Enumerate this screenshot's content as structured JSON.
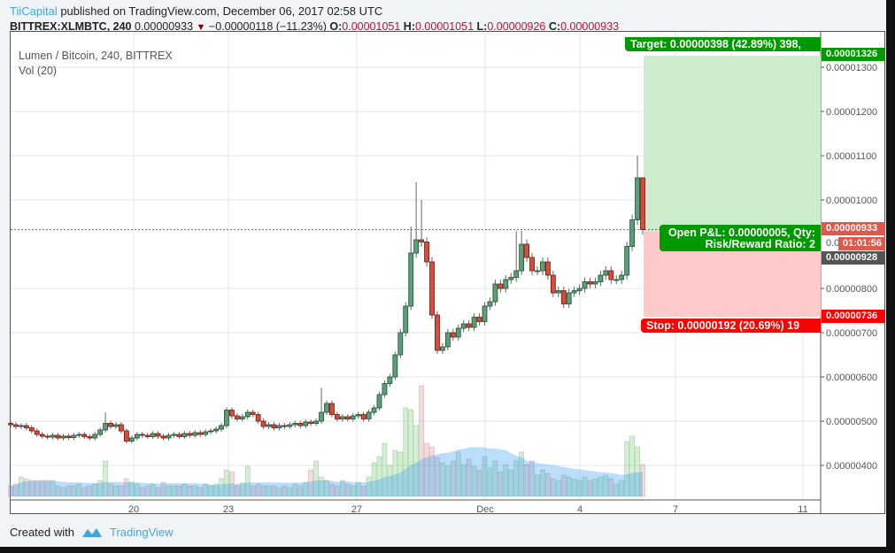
{
  "header": {
    "publisher": "TiiCapital",
    "published_text": "published on TradingView.com, December 06, 2017 02:58 UTC"
  },
  "symbol_bar": {
    "symbol": "BITTREX:XLMBTC, 240",
    "last": "0.00000933",
    "change": "−0.00000118 (−11.23%)",
    "o_label": "O:",
    "o": "0.00001051",
    "h_label": "H:",
    "h": "0.00001051",
    "l_label": "L:",
    "l": "0.00000926",
    "c_label": "C:",
    "c": "0.00000933",
    "direction_icon": "triangle-down"
  },
  "legend": {
    "title": "Lumen / Bitcoin, 240, BITTREX",
    "volume": "Vol (20)"
  },
  "position_tool": {
    "target": "Target: 0.00000398 (42.89%) 398,",
    "open_pnl": "Open P&L: 0.00000005, Qty:",
    "risk_reward": "Risk/Reward Ratio: 2",
    "stop": "Stop: 0.00000192 (20.69%) 19"
  },
  "price_labels": {
    "target": "0.00001326",
    "last": "0.00000933",
    "countdown": "01:01:56",
    "entry": "0.00000928",
    "stop": "0.00000736",
    "hidden_tick": "0.0"
  },
  "colors": {
    "up": "#5b9e78",
    "down": "#d94b3a",
    "target": "#009900",
    "stop": "#ff0000",
    "last": "#e0574b",
    "entry": "#555555",
    "accent": "#3da6e0"
  },
  "chart_data": {
    "type": "candlestick",
    "interval": "240",
    "y_ticks": [
      "0.00000400",
      "0.00000500",
      "0.00000600",
      "0.00000700",
      "0.00000800",
      "0.00001000",
      "0.00001100",
      "0.00001200",
      "0.00001300"
    ],
    "y_tick_values": [
      4e-06,
      5e-06,
      6e-06,
      7e-06,
      8e-06,
      1e-05,
      1.1e-05,
      1.2e-05,
      1.3e-05
    ],
    "x_ticks": [
      "20",
      "23",
      "27",
      "Dec",
      "4",
      "7",
      "11"
    ],
    "first_open": 4.95e-06,
    "close": [
      4.92e-06,
      4.88e-06,
      4.9e-06,
      4.85e-06,
      4.78e-06,
      4.7e-06,
      4.66e-06,
      4.64e-06,
      4.68e-06,
      4.62e-06,
      4.66e-06,
      4.63e-06,
      4.68e-06,
      4.7e-06,
      4.65e-06,
      4.62e-06,
      4.7e-06,
      4.8e-06,
      4.95e-06,
      4.88e-06,
      4.92e-06,
      4.78e-06,
      4.55e-06,
      4.62e-06,
      4.7e-06,
      4.68e-06,
      4.65e-06,
      4.72e-06,
      4.66e-06,
      4.62e-06,
      4.68e-06,
      4.7e-06,
      4.65e-06,
      4.72e-06,
      4.68e-06,
      4.74e-06,
      4.7e-06,
      4.76e-06,
      4.78e-06,
      4.82e-06,
      4.9e-06,
      5.25e-06,
      5.12e-06,
      5.05e-06,
      5.1e-06,
      5.2e-06,
      5.15e-06,
      5e-06,
      4.88e-06,
      4.92e-06,
      4.85e-06,
      4.9e-06,
      4.88e-06,
      4.92e-06,
      4.95e-06,
      4.9e-06,
      4.98e-06,
      4.95e-06,
      5e-06,
      5.2e-06,
      5.4e-06,
      5.15e-06,
      5.05e-06,
      5.1e-06,
      5.05e-06,
      5.12e-06,
      5.15e-06,
      5.05e-06,
      5.2e-06,
      5.3e-06,
      5.6e-06,
      5.85e-06,
      6e-06,
      6.5e-06,
      7e-06,
      7.6e-06,
      8.8e-06,
      9.1e-06,
      9.05e-06,
      8.6e-06,
      7.4e-06,
      6.6e-06,
      6.68e-06,
      7e-06,
      6.9e-06,
      7.1e-06,
      7.2e-06,
      7.12e-06,
      7.35e-06,
      7.25e-06,
      7.6e-06,
      7.7e-06,
      8.1e-06,
      8e-06,
      8.2e-06,
      8.25e-06,
      8.4e-06,
      9e-06,
      8.7e-06,
      8.4e-06,
      8.4e-06,
      8.6e-06,
      8.3e-06,
      7.9e-06,
      7.95e-06,
      7.65e-06,
      7.9e-06,
      7.95e-06,
      8e-06,
      8.15e-06,
      8.1e-06,
      8.15e-06,
      8.3e-06,
      8.4e-06,
      8.2e-06,
      8.2e-06,
      8.3e-06,
      8.95e-06,
      9.55e-06,
      1.05e-05,
      9.33e-06
    ],
    "high_overrides": {
      "18": 5.2e-06,
      "59": 5.75e-06,
      "76": 9.4e-06,
      "77": 1.04e-05,
      "78": 1e-05,
      "96": 9.3e-06,
      "97": 9.3e-06,
      "119": 1.1e-05,
      "120": 1.051e-05
    },
    "volume": [
      12,
      14,
      22,
      20,
      18,
      18,
      18,
      18,
      18,
      12,
      10,
      12,
      12,
      14,
      10,
      12,
      14,
      18,
      40,
      14,
      12,
      12,
      20,
      16,
      14,
      10,
      12,
      14,
      10,
      16,
      12,
      12,
      12,
      14,
      12,
      12,
      10,
      14,
      12,
      14,
      20,
      30,
      28,
      12,
      15,
      34,
      12,
      14,
      12,
      12,
      12,
      10,
      12,
      10,
      14,
      12,
      16,
      30,
      40,
      22,
      18,
      14,
      12,
      18,
      14,
      12,
      16,
      12,
      22,
      38,
      45,
      60,
      35,
      52,
      50,
      100,
      98,
      80,
      125,
      60,
      56,
      44,
      38,
      34,
      40,
      50,
      36,
      42,
      34,
      30,
      45,
      32,
      40,
      28,
      36,
      30,
      40,
      50,
      36,
      40,
      24,
      30,
      26,
      20,
      18,
      24,
      22,
      20,
      18,
      22,
      18,
      20,
      22,
      24,
      20,
      14,
      18,
      62,
      68,
      56,
      36
    ]
  }
}
